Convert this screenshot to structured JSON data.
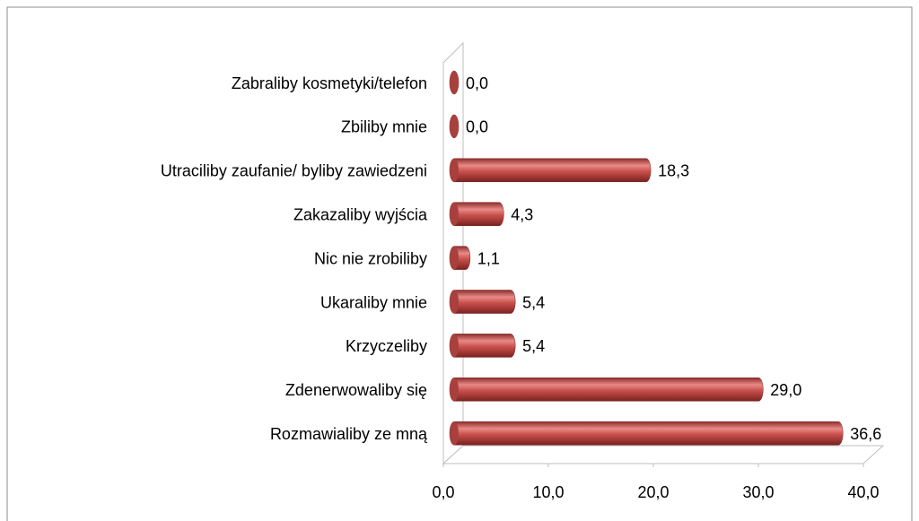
{
  "chart_data": {
    "type": "bar",
    "orientation": "horizontal",
    "categories": [
      "Zabraliby kosmetyki/telefon",
      "Zbiliby mnie",
      "Utraciliby zaufanie/ byliby zawiedzeni",
      "Zakazaliby wyjścia",
      "Nic nie zrobiliby",
      "Ukaraliby mnie",
      "Krzyczeliby",
      "Zdenerwowaliby się",
      "Rozmawialiby ze mną"
    ],
    "values": [
      0.0,
      0.0,
      18.3,
      4.3,
      1.1,
      5.4,
      5.4,
      29.0,
      36.6
    ],
    "value_labels": [
      "0,0",
      "0,0",
      "18,3",
      "4,3",
      "1,1",
      "5,4",
      "5,4",
      "29,0",
      "36,6"
    ],
    "color": "#c0504d",
    "xlim": [
      0,
      40
    ],
    "xticks": [
      {
        "value": 0,
        "label": "0,0"
      },
      {
        "value": 10,
        "label": "10,0"
      },
      {
        "value": 20,
        "label": "20,0"
      },
      {
        "value": 30,
        "label": "30,0"
      },
      {
        "value": 40,
        "label": "40,0"
      }
    ],
    "grid": false
  }
}
